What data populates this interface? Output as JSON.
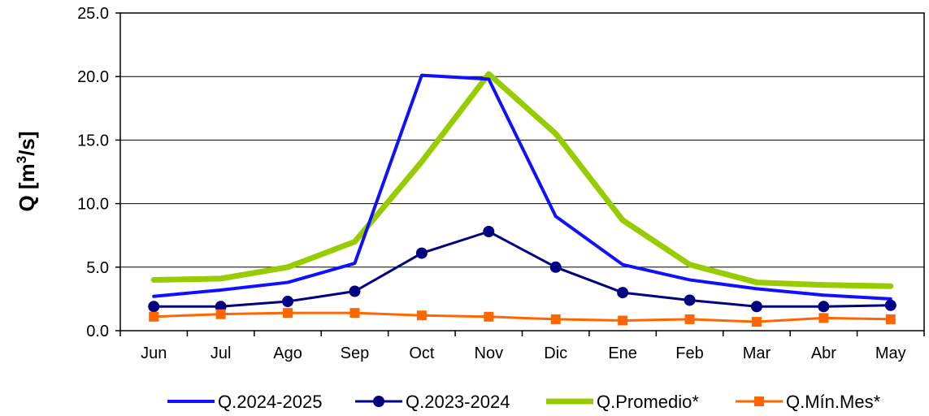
{
  "chart_data": {
    "type": "line",
    "title": "",
    "xlabel": "",
    "ylabel": "Q [m³/s]",
    "ylabel_parts": {
      "main": "Q [m",
      "sup": "3",
      "tail": "/s]"
    },
    "ylim": [
      0,
      25
    ],
    "yticks": [
      0,
      5,
      10,
      15,
      20,
      25
    ],
    "ytick_labels": [
      "0.0",
      "5.0",
      "10.0",
      "15.0",
      "20.0",
      "25.0"
    ],
    "grid": true,
    "legend_position": "bottom",
    "categories": [
      "Jun",
      "Jul",
      "Ago",
      "Sep",
      "Oct",
      "Nov",
      "Dic",
      "Ene",
      "Feb",
      "Mar",
      "Abr",
      "May"
    ],
    "series": [
      {
        "name": "Q.2024-2025",
        "color": "#1010ff",
        "marker": "none",
        "width": 4,
        "values": [
          2.7,
          3.2,
          3.8,
          5.3,
          20.1,
          19.8,
          9.0,
          5.2,
          4.0,
          3.3,
          2.8,
          2.5
        ]
      },
      {
        "name": "Q.2023-2024",
        "color": "#000080",
        "marker": "circle",
        "width": 3,
        "values": [
          1.9,
          1.9,
          2.3,
          3.1,
          6.1,
          7.8,
          5.0,
          3.0,
          2.4,
          1.9,
          1.9,
          2.0
        ]
      },
      {
        "name": "Q.Promedio*",
        "color": "#99cc00",
        "marker": "none",
        "width": 7,
        "values": [
          4.0,
          4.1,
          5.0,
          7.0,
          13.3,
          20.2,
          15.5,
          8.7,
          5.2,
          3.8,
          3.6,
          3.5
        ]
      },
      {
        "name": "Q.Mín.Mes*",
        "color": "#ff6600",
        "marker": "square",
        "width": 3,
        "values": [
          1.1,
          1.3,
          1.4,
          1.4,
          1.2,
          1.1,
          0.9,
          0.8,
          0.9,
          0.7,
          1.0,
          0.9
        ]
      }
    ]
  }
}
